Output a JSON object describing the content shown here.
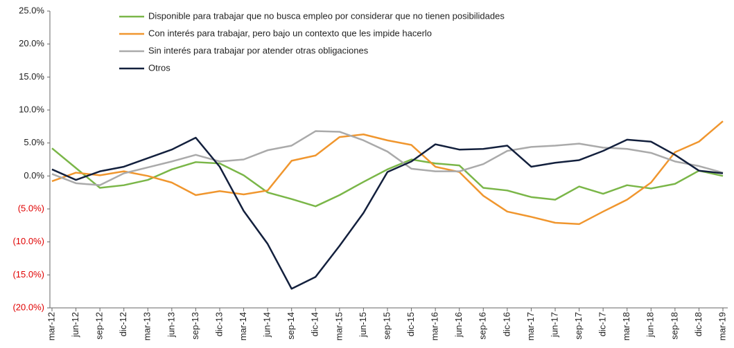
{
  "chart_data": {
    "type": "line",
    "categories": [
      "mar-12",
      "jun-12",
      "sep-12",
      "dic-12",
      "mar-13",
      "jun-13",
      "sep-13",
      "dic-13",
      "mar-14",
      "jun-14",
      "sep-14",
      "dic-14",
      "mar-15",
      "jun-15",
      "sep-15",
      "dic-15",
      "mar-16",
      "jun-16",
      "sep-16",
      "dic-16",
      "mar-17",
      "jun-17",
      "sep-17",
      "dic-17",
      "mar-18",
      "jun-18",
      "sep-18",
      "dic-18",
      "mar-19"
    ],
    "series": [
      {
        "name": "Disponible para trabajar que no busca empleo por considerar que no tienen posibilidades",
        "color": "#7ab648",
        "values": [
          4.2,
          1.2,
          -1.8,
          -1.4,
          -0.6,
          1.0,
          2.1,
          1.9,
          0.1,
          -2.5,
          -3.5,
          -4.6,
          -2.9,
          -0.9,
          1.0,
          2.5,
          1.9,
          1.6,
          -1.8,
          -2.2,
          -3.2,
          -3.6,
          -1.6,
          -2.7,
          -1.4,
          -1.9,
          -1.2,
          0.8,
          0.0
        ]
      },
      {
        "name": "Con interés para trabajar, pero bajo un contexto que les impide hacerlo",
        "color": "#f0962e",
        "values": [
          -0.8,
          0.5,
          0.1,
          0.7,
          0.0,
          -1.0,
          -2.9,
          -2.3,
          -2.8,
          -2.2,
          2.3,
          3.1,
          5.9,
          6.3,
          5.4,
          4.7,
          1.4,
          0.6,
          -3.0,
          -5.4,
          -6.2,
          -7.1,
          -7.3,
          -5.4,
          -3.6,
          -1.0,
          3.6,
          5.2,
          8.3
        ]
      },
      {
        "name": "Sin interés para trabajar por atender otras obligaciones",
        "color": "#aaaaaa",
        "values": [
          0.3,
          -1.1,
          -1.4,
          0.4,
          1.3,
          2.2,
          3.2,
          2.2,
          2.5,
          3.9,
          4.6,
          6.8,
          6.7,
          5.4,
          3.7,
          1.1,
          0.7,
          0.7,
          1.8,
          3.8,
          4.4,
          4.6,
          4.9,
          4.3,
          4.1,
          3.5,
          2.2,
          1.5,
          0.5
        ]
      },
      {
        "name": "Otros",
        "color": "#13203d",
        "values": [
          1.0,
          -0.6,
          0.7,
          1.4,
          2.7,
          4.0,
          5.8,
          1.4,
          -5.3,
          -10.3,
          -17.1,
          -15.3,
          -10.6,
          -5.6,
          0.6,
          2.2,
          4.8,
          4.0,
          4.1,
          4.6,
          1.4,
          2.0,
          2.4,
          3.8,
          5.5,
          5.2,
          3.2,
          0.8,
          0.4
        ]
      }
    ],
    "ylim": [
      -20,
      25
    ],
    "yticks": [
      {
        "value": -20,
        "label": "(20.0%)"
      },
      {
        "value": -15,
        "label": "(15.0%)"
      },
      {
        "value": -10,
        "label": "(10.0%)"
      },
      {
        "value": -5,
        "label": "(5.0%)"
      },
      {
        "value": 0,
        "label": "0.0%"
      },
      {
        "value": 5,
        "label": "5.0%"
      },
      {
        "value": 10,
        "label": "10.0%"
      },
      {
        "value": 15,
        "label": "15.0%"
      },
      {
        "value": 20,
        "label": "20.0%"
      },
      {
        "value": 25,
        "label": "25.0%"
      }
    ],
    "negative_tick_color": "#e00000",
    "legend": "top-left"
  }
}
